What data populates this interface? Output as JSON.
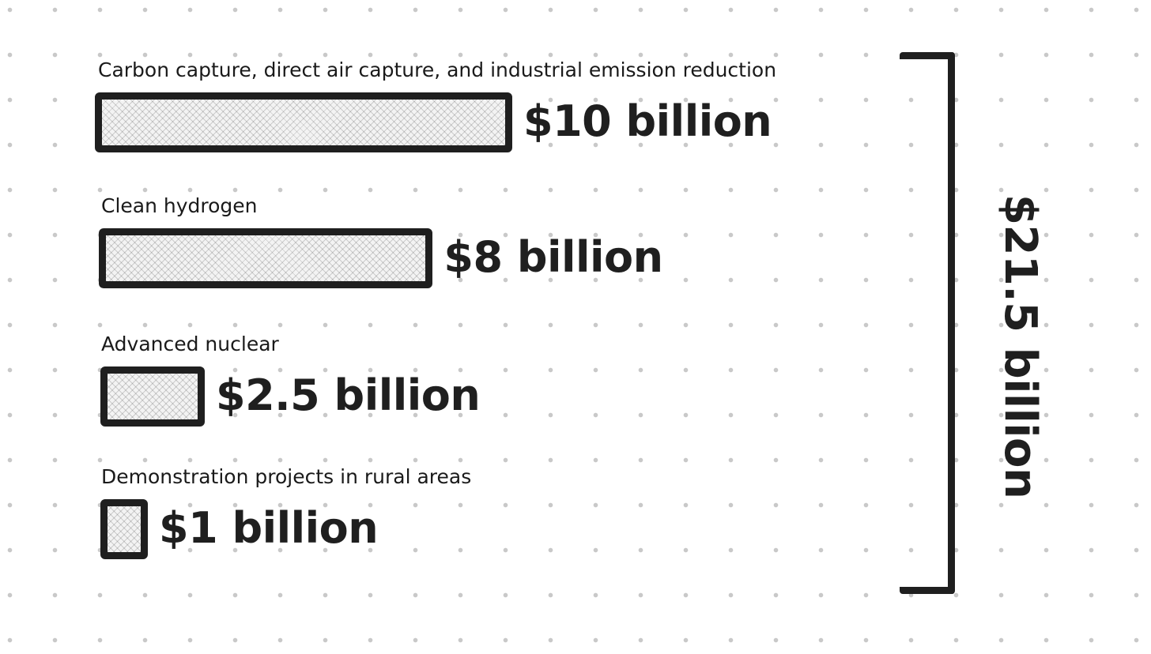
{
  "chart_data": {
    "type": "bar",
    "orientation": "horizontal",
    "categories": [
      "Carbon capture, direct air capture, and industrial emission reduction",
      "Clean hydrogen",
      "Advanced nuclear",
      "Demonstration projects in rural areas"
    ],
    "values": [
      10,
      8,
      2.5,
      1
    ],
    "value_labels": [
      "$10 billion",
      "$8 billion",
      "$2.5 billion",
      "$1 billion"
    ],
    "total": 21.5,
    "total_label": "$21.5 billion",
    "title": "",
    "xlabel": "",
    "ylabel": "",
    "grid": false,
    "legend": "none",
    "colors": {
      "bar_fill": "#f3f3f3",
      "bar_border": "#1f1f1f",
      "text": "#1f1f1f",
      "dots": "#c9c9c9"
    }
  }
}
